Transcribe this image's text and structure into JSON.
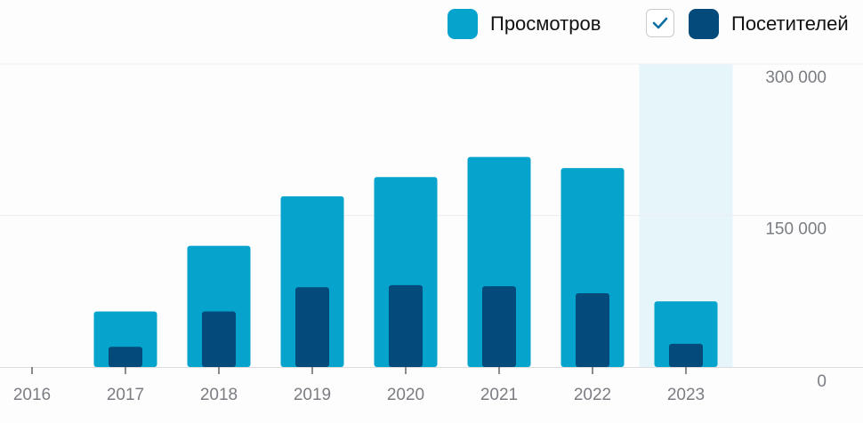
{
  "legend": {
    "views_label": "Просмотров",
    "visitors_label": "Посетителей"
  },
  "colors": {
    "views": "#06a4cd",
    "visitors": "#044a7a",
    "highlight": "#e6f5fa",
    "grid": "#eeeeee",
    "axis": "#dddddd",
    "check": "#0b6fa0"
  },
  "chart_data": {
    "type": "bar",
    "categories": [
      "2016",
      "2017",
      "2018",
      "2019",
      "2020",
      "2021",
      "2022",
      "2023"
    ],
    "series": [
      {
        "name": "Просмотров",
        "values": [
          0,
          55000,
          120000,
          169000,
          188000,
          208000,
          197000,
          65000
        ]
      },
      {
        "name": "Посетителей",
        "values": [
          0,
          20000,
          55000,
          79000,
          81000,
          80000,
          73000,
          23000
        ]
      }
    ],
    "ylim": [
      0,
      300000
    ],
    "y_ticks": [
      0,
      150000,
      300000
    ],
    "y_tick_labels": [
      "0",
      "150 000",
      "300 000"
    ],
    "highlighted_category": "2023",
    "y_axis_position": "right",
    "grid": true,
    "legend_position": "top-right"
  }
}
